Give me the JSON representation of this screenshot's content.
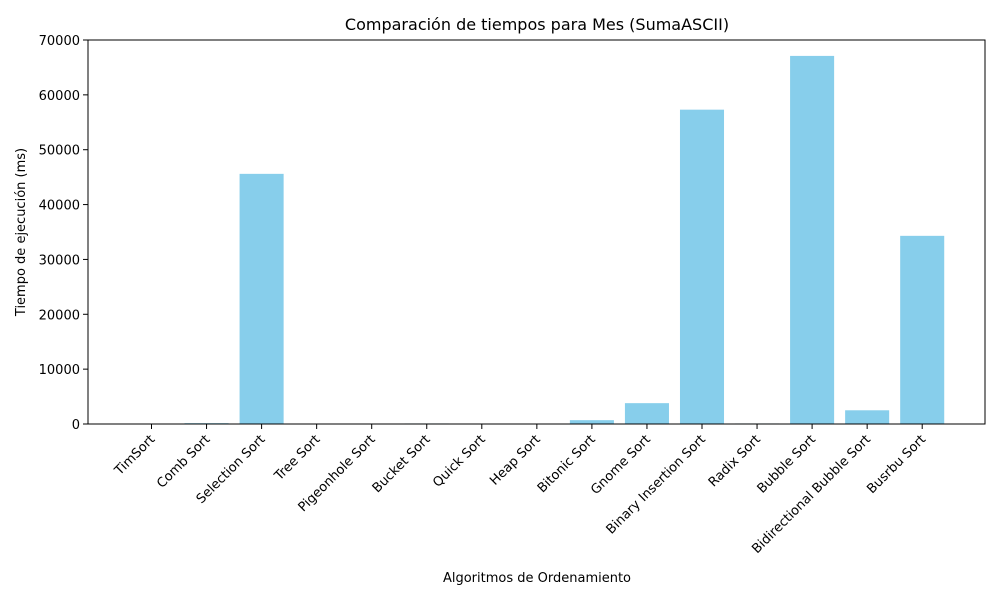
{
  "chart_data": {
    "type": "bar",
    "title": "Comparación de tiempos para Mes (SumaASCII)",
    "xlabel": "Algoritmos de Ordenamiento",
    "ylabel": "Tiempo de ejecución (ms)",
    "ylim": [
      0,
      70000
    ],
    "yticks": [
      0,
      10000,
      20000,
      30000,
      40000,
      50000,
      60000,
      70000
    ],
    "grid": false,
    "bar_color": "#87CEEB",
    "categories": [
      "TimSort",
      "Comb Sort",
      "Selection Sort",
      "Tree Sort",
      "Pigeonhole Sort",
      "Bucket Sort",
      "Quick Sort",
      "Heap Sort",
      "Bitonic Sort",
      "Gnome Sort",
      "Binary Insertion Sort",
      "Radix Sort",
      "Bubble Sort",
      "Bidirectional Bubble Sort",
      "Busrbu Sort"
    ],
    "values": [
      30,
      150,
      45600,
      30,
      20,
      100,
      30,
      50,
      700,
      3800,
      57300,
      100,
      67100,
      2500,
      34300
    ]
  }
}
